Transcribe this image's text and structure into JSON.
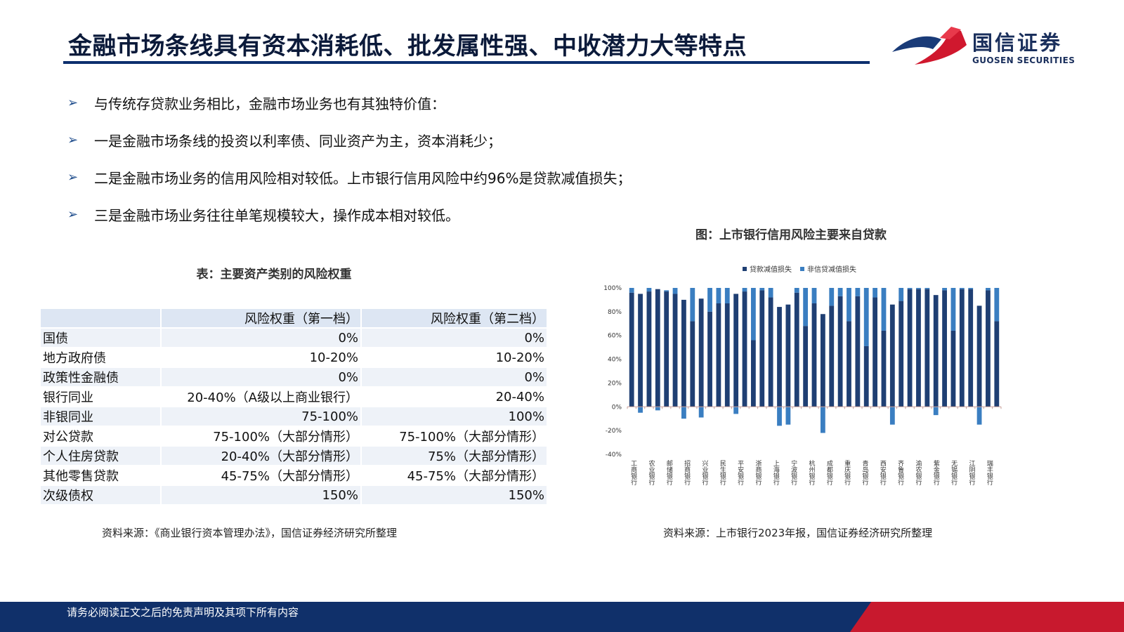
{
  "header": {
    "title": "金融市场条线具有资本消耗低、批发属性强、中收潜力大等特点",
    "logo_cn": "国信证券",
    "logo_en": "GUOSEN SECURITIES"
  },
  "bullets": [
    "与传统存贷款业务相比，金融市场业务也有其独特价值：",
    "一是金融市场条线的投资以利率债、同业资产为主，资本消耗少；",
    "二是金融市场业务的信用风险相对较低。上市银行信用风险中约96%是贷款减值损失；",
    "三是金融市场业务往往单笔规模较大，操作成本相对较低。"
  ],
  "table": {
    "caption": "表：主要资产类别的风险权重",
    "headers": [
      "",
      "风险权重（第一档）",
      "风险权重（第二档）"
    ],
    "rows": [
      [
        "国债",
        "0%",
        "0%"
      ],
      [
        "地方政府债",
        "10-20%",
        "10-20%"
      ],
      [
        "政策性金融债",
        "0%",
        "0%"
      ],
      [
        "银行同业",
        "20-40%（A级以上商业银行）",
        "20-40%"
      ],
      [
        "非银同业",
        "75-100%",
        "100%"
      ],
      [
        "对公贷款",
        "75-100%（大部分情形）",
        "75-100%（大部分情形）"
      ],
      [
        "个人住房贷款",
        "20-40%（大部分情形）",
        "75%（大部分情形）"
      ],
      [
        "其他零售贷款",
        "45-75%（大部分情形）",
        "45-75%（大部分情形）"
      ],
      [
        "次级债权",
        "150%",
        "150%"
      ]
    ],
    "source": "资料来源：《商业银行资本管理办法》，国信证券经济研究所整理"
  },
  "chart": {
    "caption": "图：上市银行信用风险主要来自贷款",
    "source": "资料来源：上市银行2023年报，国信证券经济研究所整理"
  },
  "chart_data": {
    "type": "bar",
    "stacked": true,
    "series": [
      {
        "name": "贷款减值损失",
        "color": "#1f3f73",
        "values": [
          96,
          95,
          97,
          99,
          97,
          95,
          90,
          72,
          91,
          80,
          87,
          87,
          95,
          97,
          56,
          98,
          92,
          84,
          86,
          96,
          68,
          87,
          78,
          85,
          93,
          72,
          93,
          51,
          92,
          64,
          86,
          89,
          99,
          99,
          99,
          94,
          98,
          64,
          99,
          99,
          85,
          98,
          72
        ]
      },
      {
        "name": "非信贷减值损失",
        "color": "#3a7ec1",
        "values": [
          4,
          -5,
          3,
          -3,
          1,
          5,
          -10,
          28,
          -9,
          20,
          13,
          13,
          -6,
          3,
          44,
          2,
          8,
          -16,
          -15,
          4,
          32,
          13,
          -22,
          15,
          7,
          28,
          7,
          49,
          8,
          36,
          -15,
          11,
          1,
          1,
          1,
          -7,
          2,
          36,
          1,
          1,
          -15,
          2,
          28
        ]
      }
    ],
    "x_tick_labels": [
      "工商银行",
      "农业银行",
      "邮储银行",
      "招商银行",
      "兴业银行",
      "民生银行",
      "平安银行",
      "浙商银行",
      "上海银行",
      "宁波银行",
      "杭州银行",
      "成都银行",
      "重庆银行",
      "青岛银行",
      "西安银行",
      "齐鲁银行",
      "渝农银行",
      "紫金银行",
      "无锡银行",
      "江阴银行",
      "瑞丰银行"
    ],
    "y_ticks": [
      "100%",
      "80%",
      "60%",
      "40%",
      "20%",
      "0%",
      "-20%",
      "-40%"
    ],
    "ylim": [
      -40,
      100
    ],
    "legend_position": "top"
  }
}
